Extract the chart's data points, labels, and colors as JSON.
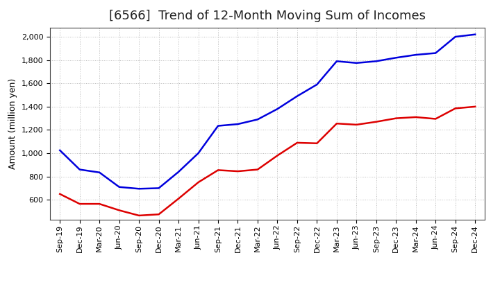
{
  "title": "[6566]  Trend of 12-Month Moving Sum of Incomes",
  "ylabel": "Amount (million yen)",
  "background_color": "#ffffff",
  "grid_color": "#bbbbbb",
  "x_labels": [
    "Sep-19",
    "Dec-19",
    "Mar-20",
    "Jun-20",
    "Sep-20",
    "Dec-20",
    "Mar-21",
    "Jun-21",
    "Sep-21",
    "Dec-21",
    "Mar-22",
    "Jun-22",
    "Sep-22",
    "Dec-22",
    "Mar-23",
    "Jun-23",
    "Sep-23",
    "Dec-23",
    "Mar-24",
    "Jun-24",
    "Sep-24",
    "Dec-24"
  ],
  "ordinary_income": [
    1025,
    860,
    835,
    710,
    695,
    700,
    840,
    1000,
    1235,
    1250,
    1290,
    1380,
    1490,
    1590,
    1790,
    1775,
    1790,
    1820,
    1845,
    1860,
    2000,
    2020
  ],
  "net_income": [
    650,
    565,
    565,
    510,
    465,
    475,
    610,
    750,
    855,
    845,
    860,
    980,
    1090,
    1085,
    1255,
    1245,
    1270,
    1300,
    1310,
    1295,
    1385,
    1400
  ],
  "ordinary_color": "#0000dd",
  "net_color": "#dd0000",
  "ylim_min": 430,
  "ylim_max": 2080,
  "yticks": [
    600,
    800,
    1000,
    1200,
    1400,
    1600,
    1800,
    2000
  ],
  "line_width": 1.8,
  "title_fontsize": 13,
  "tick_fontsize": 8,
  "ylabel_fontsize": 9,
  "legend_fontsize": 10
}
